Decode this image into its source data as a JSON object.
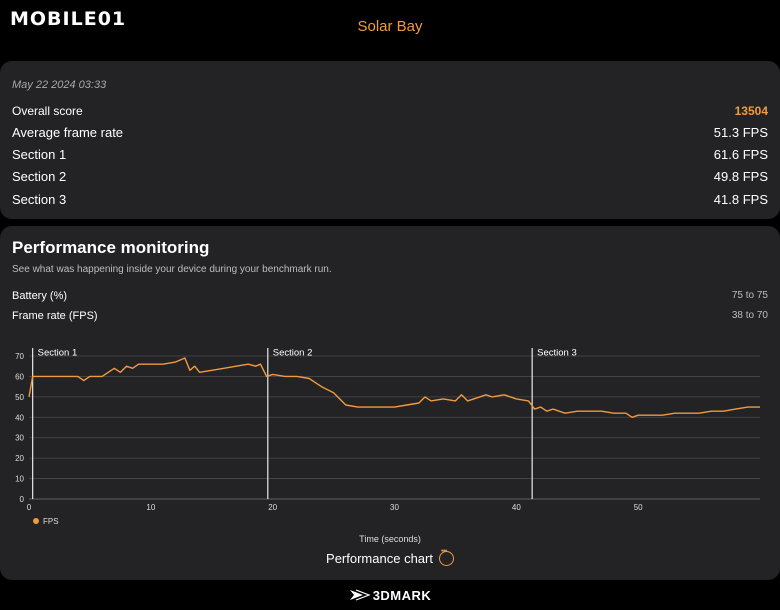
{
  "header": {
    "logo_text": "MOBILE01",
    "title": "Solar Bay"
  },
  "summary": {
    "date": "May 22 2024 03:33",
    "overall_label": "Overall score",
    "overall_value": "13504",
    "rows": [
      {
        "label": "Average frame rate",
        "value": "51.3 FPS"
      },
      {
        "label": "Section 1",
        "value": "61.6 FPS"
      },
      {
        "label": "Section 2",
        "value": "49.8 FPS"
      },
      {
        "label": "Section 3",
        "value": "41.8 FPS"
      }
    ]
  },
  "performance": {
    "title": "Performance monitoring",
    "subtitle": "See what was happening inside your device during your benchmark run.",
    "metrics": [
      {
        "label": "Battery (%)",
        "range": "75 to 75"
      },
      {
        "label": "Frame rate (FPS)",
        "range": "38 to 70"
      }
    ],
    "button_label": "Performance chart"
  },
  "footer": {
    "brand": "3DMARK"
  },
  "chart_data": {
    "type": "line",
    "xlabel": "Time (seconds)",
    "ylabel": "",
    "xlim": [
      0,
      60
    ],
    "ylim": [
      0,
      70
    ],
    "x_ticks": [
      0,
      10,
      20,
      30,
      40,
      50
    ],
    "y_ticks": [
      0,
      10,
      20,
      30,
      40,
      50,
      60,
      70
    ],
    "sections": [
      {
        "label": "Section 1",
        "x": 0.3
      },
      {
        "label": "Section 2",
        "x": 19.6
      },
      {
        "label": "Section 3",
        "x": 41.3
      }
    ],
    "legend": "bottom-left",
    "grid": true,
    "colors": {
      "series": "#f19a3e",
      "accent": "#f19a3e"
    },
    "series": [
      {
        "name": "FPS",
        "x": [
          0,
          0.3,
          0.6,
          1,
          2,
          3,
          4,
          4.5,
          5,
          6,
          7,
          7.5,
          8,
          8.5,
          9,
          10,
          11,
          12,
          12.8,
          13.2,
          13.6,
          14,
          15,
          16,
          17,
          18,
          18.6,
          19,
          19.5,
          20,
          21,
          22,
          23,
          24,
          25,
          25.5,
          26,
          27,
          28,
          29,
          30,
          31,
          32,
          32.5,
          33,
          34,
          35,
          35.5,
          36,
          37,
          37.5,
          38,
          39,
          40,
          41,
          41.5,
          42,
          42.5,
          43,
          44,
          45,
          46,
          47,
          48,
          49,
          49.5,
          50,
          51,
          52,
          53,
          54,
          55,
          56,
          57,
          58,
          59,
          60
        ],
        "y": [
          50,
          60,
          60,
          60,
          60,
          60,
          60,
          58,
          60,
          60,
          64,
          62,
          65,
          64,
          66,
          66,
          66,
          67,
          69,
          63,
          65,
          62,
          63,
          64,
          65,
          66,
          65,
          66,
          60,
          61,
          60,
          60,
          59,
          55,
          52,
          49,
          46,
          45,
          45,
          45,
          45,
          46,
          47,
          50,
          48,
          49,
          48,
          51,
          48,
          50,
          51,
          50,
          51,
          49,
          48,
          44,
          45,
          43,
          44,
          42,
          43,
          43,
          43,
          42,
          42,
          40,
          41,
          41,
          41,
          42,
          42,
          42,
          43,
          43,
          44,
          45,
          45
        ]
      }
    ]
  }
}
